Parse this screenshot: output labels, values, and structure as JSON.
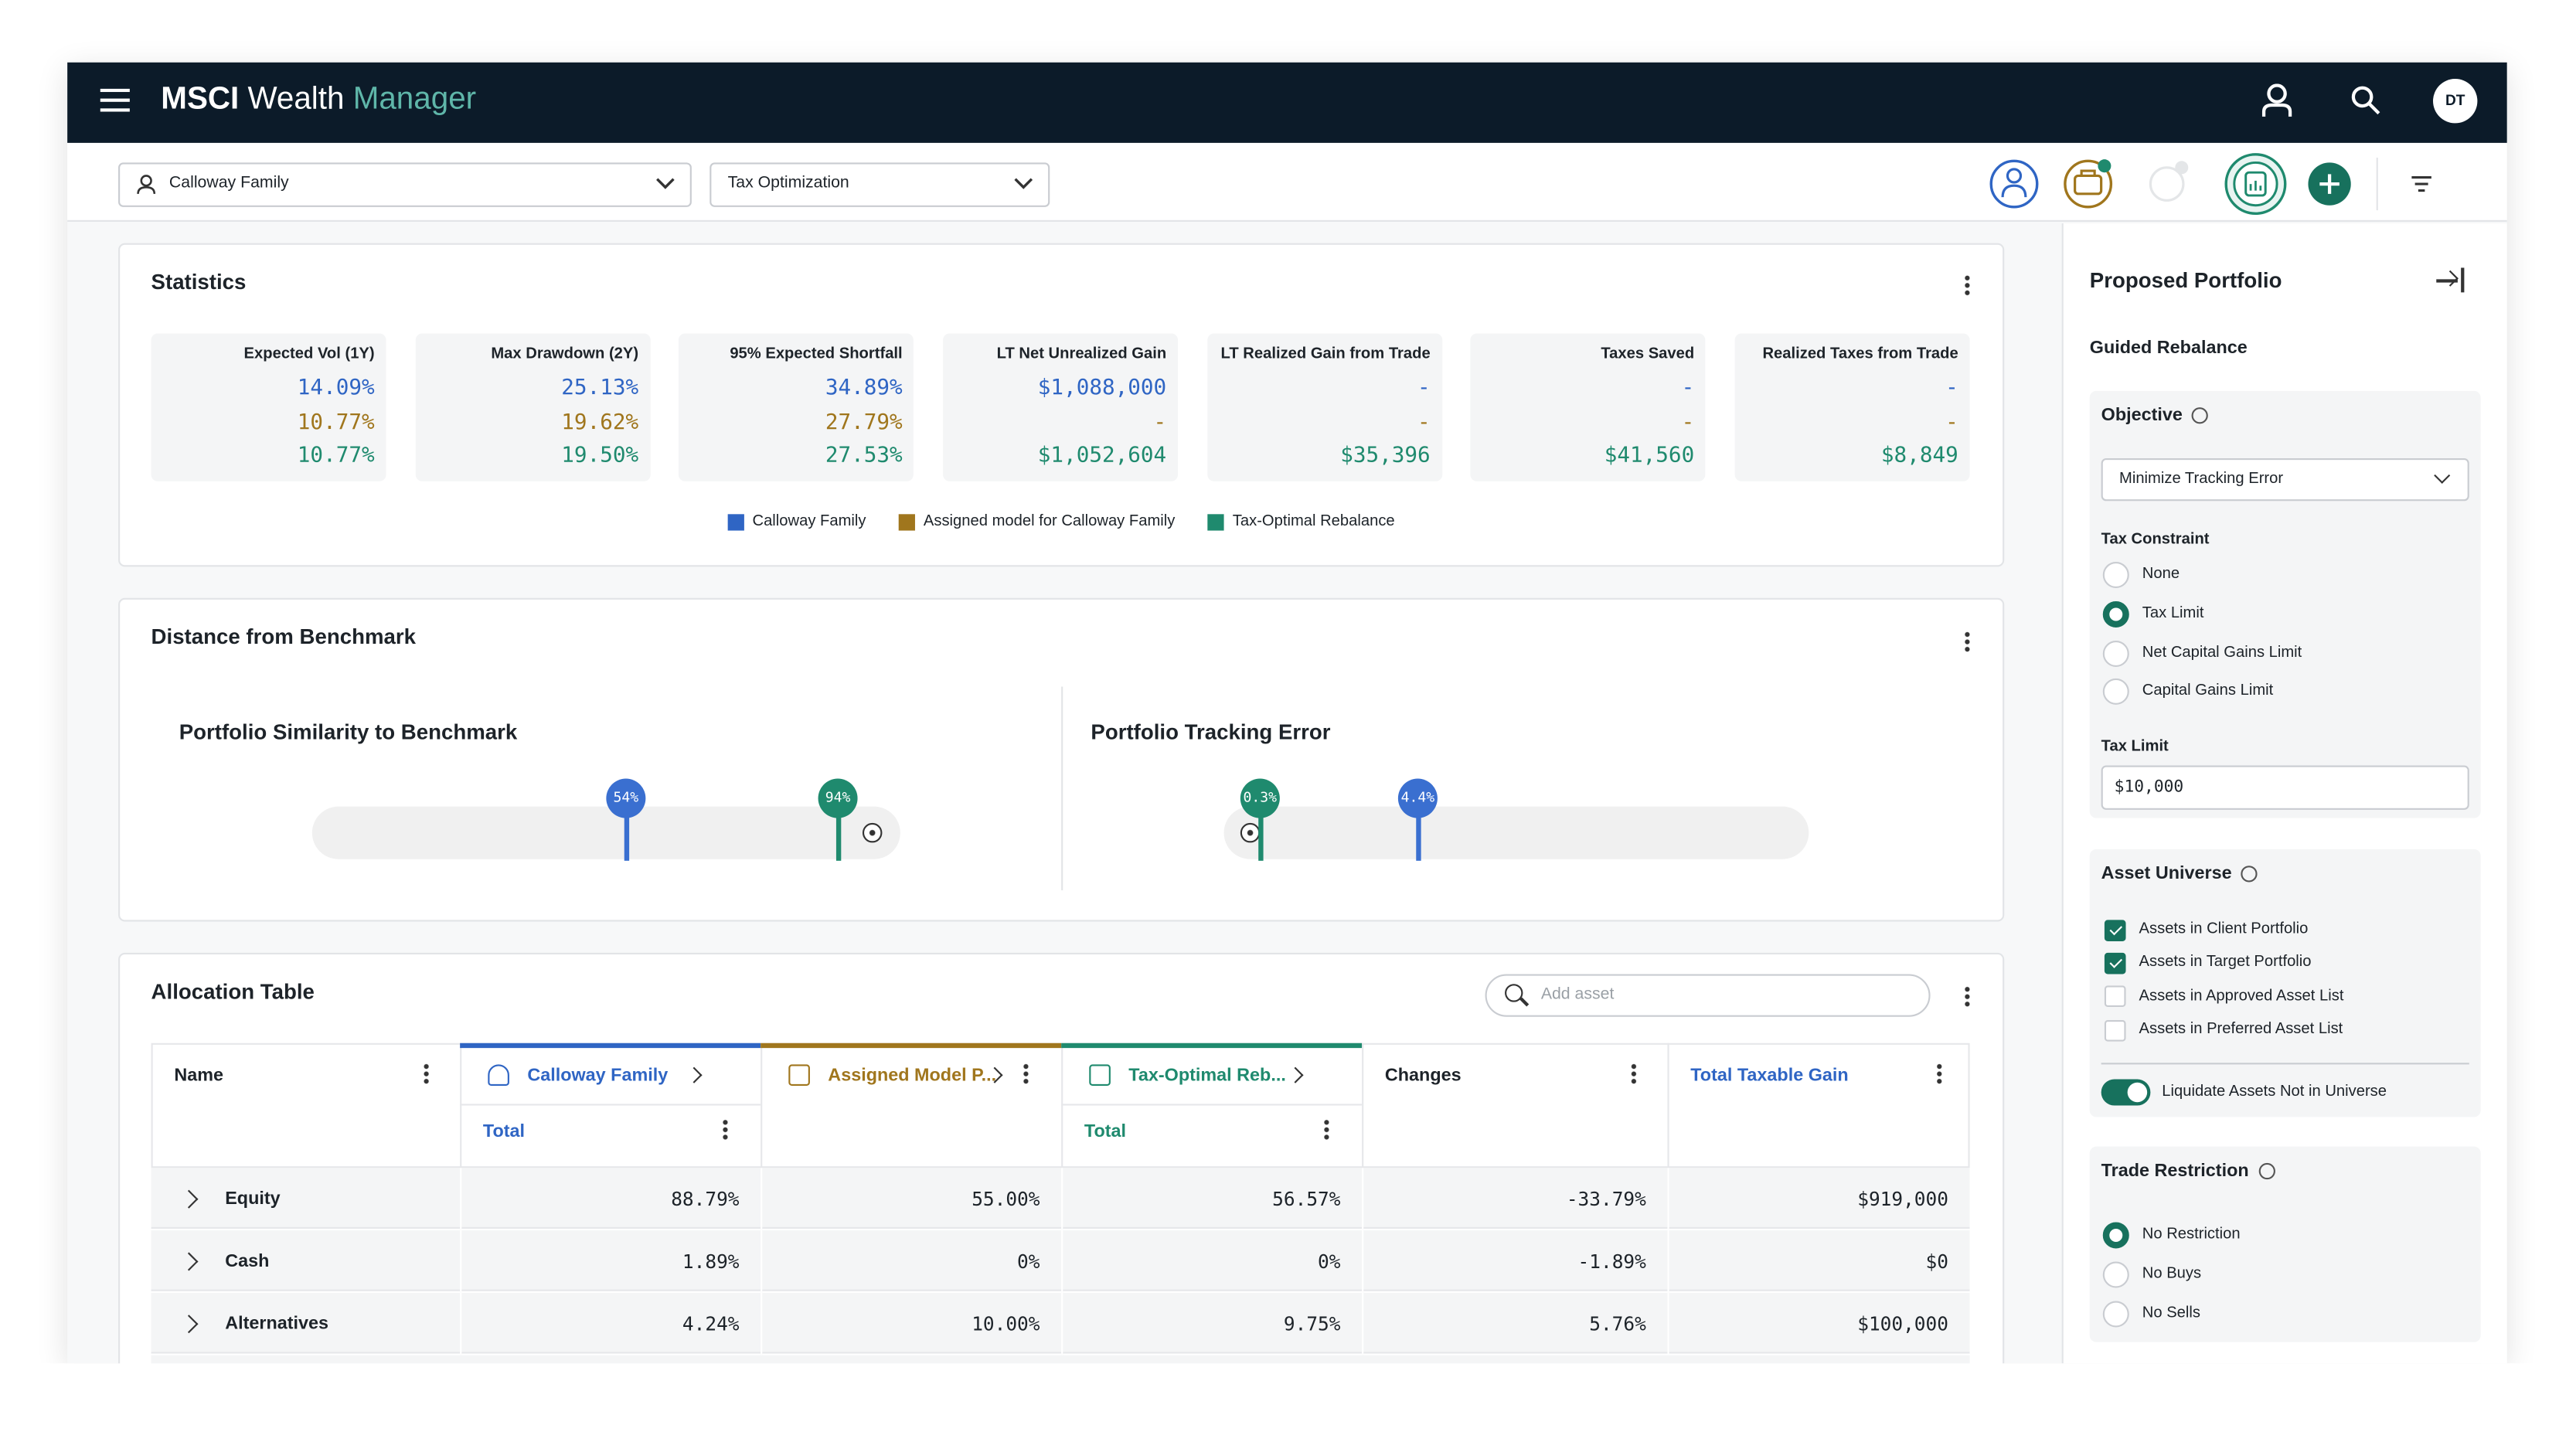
{
  "header": {
    "brand_bold": "MSCI",
    "brand_mid": "Wealth",
    "brand_light": "Manager",
    "avatar": "DT"
  },
  "toolbar": {
    "client": "Calloway Family",
    "mode": "Tax Optimization"
  },
  "statistics": {
    "title": "Statistics",
    "cards": [
      {
        "label": "Expected Vol (1Y)",
        "values": [
          "14.09%",
          "10.77%",
          "10.77%"
        ]
      },
      {
        "label": "Max Drawdown (2Y)",
        "values": [
          "25.13%",
          "19.62%",
          "19.50%"
        ]
      },
      {
        "label": "95% Expected Shortfall",
        "values": [
          "34.89%",
          "27.79%",
          "27.53%"
        ]
      },
      {
        "label": "LT Net Unrealized Gain",
        "values": [
          "$1,088,000",
          "-",
          "$1,052,604"
        ]
      },
      {
        "label": "LT Realized Gain from Trade",
        "values": [
          "-",
          "-",
          "$35,396"
        ]
      },
      {
        "label": "Taxes Saved",
        "values": [
          "-",
          "-",
          "$41,560"
        ]
      },
      {
        "label": "Realized Taxes from Trade",
        "values": [
          "-",
          "-",
          "$8,849"
        ]
      }
    ],
    "legend": [
      "Calloway Family",
      "Assigned model for Calloway Family",
      "Tax-Optimal Rebalance"
    ]
  },
  "distance": {
    "title": "Distance from Benchmark",
    "similarity": {
      "title": "Portfolio Similarity to Benchmark",
      "markers": [
        "54%",
        "94%"
      ]
    },
    "tracking": {
      "title": "Portfolio Tracking Error",
      "markers": [
        "0.3%",
        "4.4%"
      ]
    }
  },
  "allocation": {
    "title": "Allocation Table",
    "search_placeholder": "Add asset",
    "columns": [
      "Name",
      "Calloway Family",
      "Assigned Model P...",
      "Tax-Optimal Reb...",
      "Changes",
      "Total Taxable Gain"
    ],
    "subheaders": {
      "1": "Total",
      "3": "Total"
    },
    "rows": [
      [
        "Equity",
        "88.79%",
        "55.00%",
        "56.57%",
        "-33.79%",
        "$919,000"
      ],
      [
        "Cash",
        "1.89%",
        "0%",
        "0%",
        "-1.89%",
        "$0"
      ],
      [
        "Alternatives",
        "4.24%",
        "10.00%",
        "9.75%",
        "5.76%",
        "$100,000"
      ]
    ]
  },
  "panel": {
    "title": "Proposed Portfolio",
    "subtitle": "Guided Rebalance",
    "objective_label": "Objective",
    "objective_value": "Minimize Tracking Error",
    "tax_constraint_label": "Tax Constraint",
    "tax_constraint_options": [
      "None",
      "Tax Limit",
      "Net Capital Gains Limit",
      "Capital Gains Limit"
    ],
    "tax_limit_label": "Tax Limit",
    "tax_limit_value": "$10,000",
    "asset_universe_label": "Asset Universe",
    "asset_universe_options": [
      "Assets in Client Portfolio",
      "Assets in Target Portfolio",
      "Assets in Approved Asset List",
      "Assets in Preferred Asset List"
    ],
    "liquidate_label": "Liquidate Assets Not in Universe",
    "trade_restriction_label": "Trade Restriction",
    "trade_restriction_options": [
      "No Restriction",
      "No Buys",
      "No Sells"
    ]
  }
}
